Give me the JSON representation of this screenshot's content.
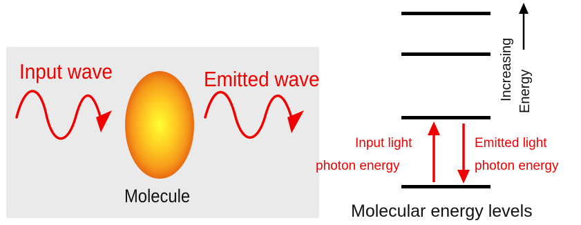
{
  "absorption_panel": {
    "input_label": "Input wave",
    "emitted_label": "Emitted wave",
    "molecule_label": "Molecule"
  },
  "energy_diagram": {
    "axis_label_line1": "Increasing",
    "axis_label_line2": "Energy",
    "input_label_line1": "Input light",
    "input_label_line2": "photon energy",
    "emitted_label_line1": "Emitted light",
    "emitted_label_line2": "photon energy",
    "caption": "Molecular energy levels",
    "level_count": 4
  },
  "colors": {
    "accent_red": "#f00000",
    "molecule_center": "#ffff33",
    "molecule_edge": "#f07010",
    "panel_background": "#eaeaea",
    "level_color": "#000000"
  }
}
